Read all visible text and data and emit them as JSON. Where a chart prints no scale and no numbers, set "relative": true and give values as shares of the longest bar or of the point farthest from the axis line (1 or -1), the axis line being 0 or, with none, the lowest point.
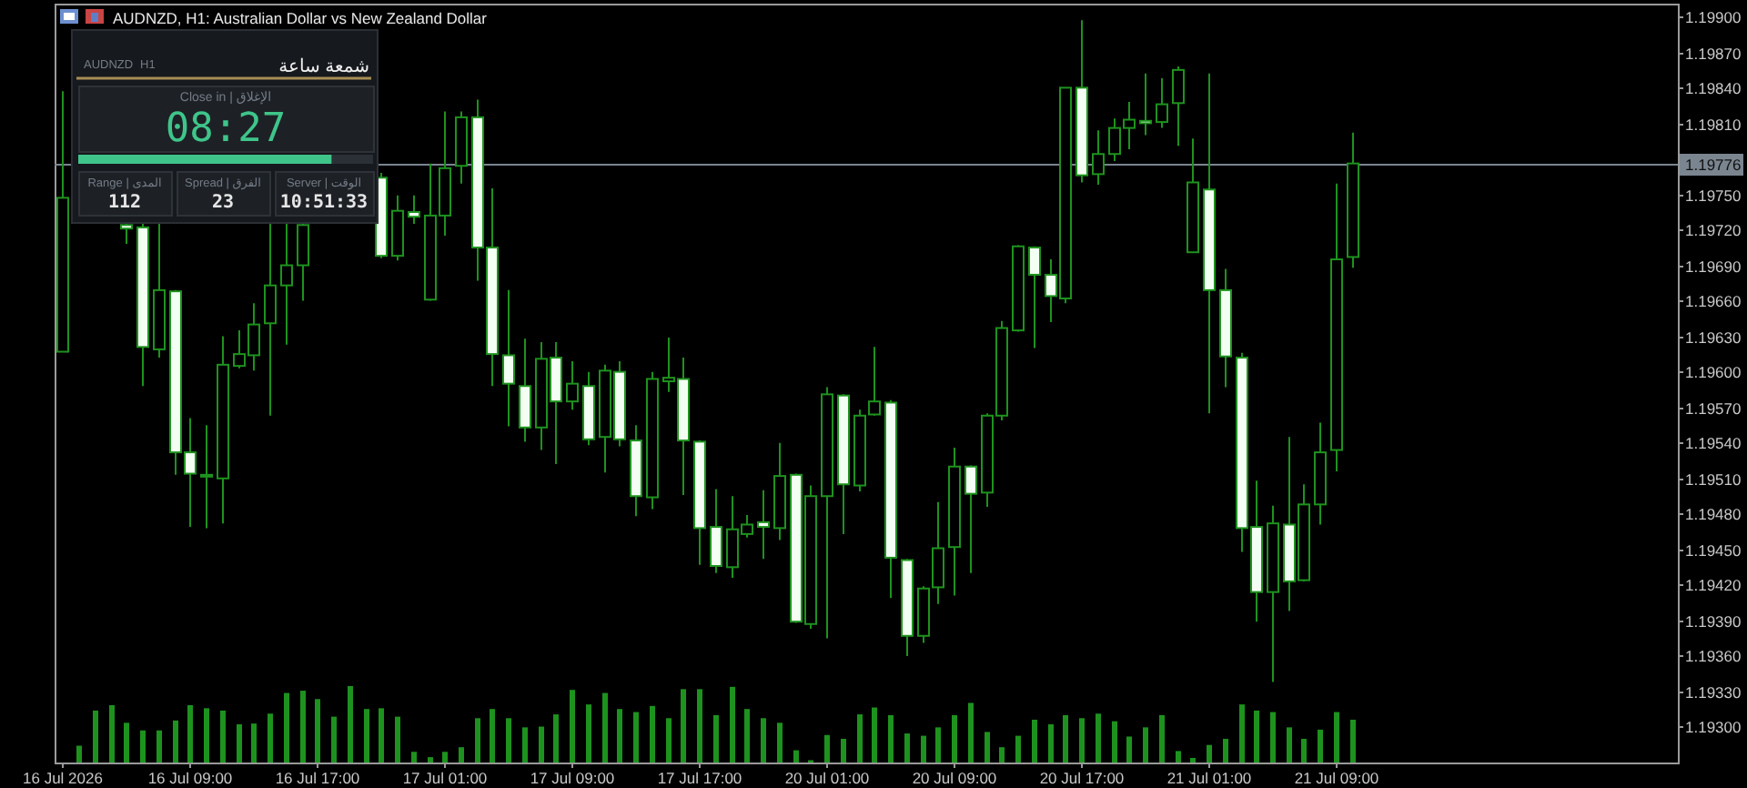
{
  "chart_data": [
    {
      "type": "candlestick",
      "title": "AUDNZD, H1: Australian Dollar vs New Zealand Dollar",
      "color": "#1e921e",
      "categories": [
        "16 Jul 2026",
        null,
        null,
        null,
        null,
        null,
        null,
        null,
        "16 Jul 09:00",
        null,
        null,
        null,
        null,
        null,
        null,
        null,
        "16 Jul 17:00",
        null,
        null,
        null,
        null,
        null,
        null,
        null,
        "17 Jul 01:00",
        null,
        null,
        null,
        null,
        null,
        null,
        null,
        "17 Jul 09:00",
        null,
        null,
        null,
        null,
        null,
        null,
        null,
        "17 Jul 17:00",
        null,
        null,
        null,
        null,
        null,
        null,
        null,
        "20 Jul 01:00",
        null,
        null,
        null,
        null,
        null,
        null,
        null,
        "20 Jul 09:00",
        null,
        null,
        null,
        null,
        null,
        null,
        null,
        "20 Jul 17:00",
        null,
        null,
        null,
        null,
        null,
        null,
        null,
        "21 Jul 01:00",
        null,
        null,
        null,
        null,
        null,
        null,
        null,
        "21 Jul 09:00",
        null,
        null,
        null,
        null,
        null,
        null,
        null,
        null,
        null,
        null,
        null,
        null,
        null,
        null,
        null,
        null,
        null,
        null,
        null,
        null,
        null
      ],
      "ohlc": [
        [
          1.19617,
          1.19837,
          1.19617,
          1.19747
        ],
        null,
        null,
        null,
        [
          1.19724,
          1.19726,
          1.19708,
          1.19721
        ],
        [
          1.19722,
          1.19726,
          1.19588,
          1.19621
        ],
        [
          1.19619,
          1.19726,
          1.19612,
          1.19669
        ],
        [
          1.19668,
          1.19669,
          1.19513,
          1.19532
        ],
        [
          1.19532,
          1.19561,
          1.19469,
          1.19514
        ],
        [
          1.19512,
          1.19555,
          1.19468,
          1.19513
        ],
        [
          1.1951,
          1.1963,
          1.19472,
          1.19606
        ],
        [
          1.19605,
          1.19635,
          1.19603,
          1.19615
        ],
        [
          1.19614,
          1.19658,
          1.19601,
          1.1964
        ],
        [
          1.19641,
          1.19726,
          1.19563,
          1.19673
        ],
        [
          1.19673,
          1.19726,
          1.19623,
          1.1969
        ],
        [
          1.1969,
          1.19726,
          1.1966,
          1.19724
        ],
        null,
        null,
        null,
        null,
        [
          1.19764,
          1.19768,
          1.19696,
          1.19698
        ],
        [
          1.19698,
          1.19749,
          1.19694,
          1.19736
        ],
        [
          1.19735,
          1.19749,
          1.19725,
          1.19731
        ],
        [
          1.19661,
          1.19776,
          1.1966,
          1.19732
        ],
        [
          1.19732,
          1.1982,
          1.19715,
          1.19772
        ],
        [
          1.19774,
          1.1982,
          1.19759,
          1.19815
        ],
        [
          1.19815,
          1.1983,
          1.19677,
          1.19705
        ],
        [
          1.19705,
          1.19755,
          1.19588,
          1.19615
        ],
        [
          1.19614,
          1.19669,
          1.19554,
          1.1959
        ],
        [
          1.19588,
          1.19628,
          1.19541,
          1.19553
        ],
        [
          1.19553,
          1.19625,
          1.19534,
          1.19611
        ],
        [
          1.19612,
          1.19625,
          1.19522,
          1.19575
        ],
        [
          1.19575,
          1.19609,
          1.19568,
          1.1959
        ],
        [
          1.19588,
          1.196,
          1.19538,
          1.19543
        ],
        [
          1.19545,
          1.19606,
          1.19515,
          1.19601
        ],
        [
          1.196,
          1.19609,
          1.19537,
          1.19543
        ],
        [
          1.19542,
          1.19555,
          1.19478,
          1.19495
        ],
        [
          1.19494,
          1.196,
          1.19484,
          1.19594
        ],
        [
          1.19592,
          1.19629,
          1.19583,
          1.19595
        ],
        [
          1.19594,
          1.19612,
          1.19496,
          1.19542
        ],
        [
          1.19541,
          1.19542,
          1.19437,
          1.19468
        ],
        [
          1.19469,
          1.19501,
          1.1943,
          1.19436
        ],
        [
          1.19435,
          1.19495,
          1.19426,
          1.19467
        ],
        [
          1.19463,
          1.19479,
          1.1946,
          1.19471
        ],
        [
          1.19473,
          1.195,
          1.19442,
          1.19469
        ],
        [
          1.19468,
          1.1954,
          1.19458,
          1.19512
        ],
        [
          1.19513,
          1.19514,
          1.19388,
          1.19389
        ],
        [
          1.19387,
          1.19504,
          1.19383,
          1.19495
        ],
        [
          1.19495,
          1.19587,
          1.19375,
          1.19581
        ],
        [
          1.1958,
          1.19581,
          1.19463,
          1.19505
        ],
        [
          1.19504,
          1.19568,
          1.19499,
          1.19563
        ],
        [
          1.19564,
          1.19621,
          1.19563,
          1.19575
        ],
        [
          1.19574,
          1.19576,
          1.19409,
          1.19443
        ],
        [
          1.19441,
          1.19442,
          1.1936,
          1.19377
        ],
        [
          1.19377,
          1.19419,
          1.19371,
          1.19417
        ],
        [
          1.19418,
          1.1949,
          1.19404,
          1.19451
        ],
        [
          1.19452,
          1.19536,
          1.19411,
          1.1952
        ],
        [
          1.1952,
          1.19521,
          1.1943,
          1.19497
        ],
        [
          1.19498,
          1.19565,
          1.19486,
          1.19563
        ],
        [
          1.19563,
          1.19643,
          1.19559,
          1.19637
        ],
        [
          1.19635,
          1.19707,
          1.19634,
          1.19706
        ],
        [
          1.19705,
          1.19706,
          1.1962,
          1.19682
        ],
        [
          1.19682,
          1.19695,
          1.19642,
          1.19664
        ],
        [
          1.19662,
          1.1984,
          1.19658,
          1.1984
        ],
        [
          1.1984,
          1.19897,
          1.1976,
          1.19766
        ],
        [
          1.19767,
          1.19804,
          1.19758,
          1.19784
        ],
        [
          1.19784,
          1.19814,
          1.19778,
          1.19806
        ],
        [
          1.19806,
          1.19828,
          1.19788,
          1.19813
        ],
        [
          1.19812,
          1.19852,
          1.198,
          1.1981
        ],
        [
          1.19811,
          1.19848,
          1.19806,
          1.19826
        ],
        [
          1.19827,
          1.19858,
          1.19791,
          1.19855
        ],
        [
          1.19701,
          1.19797,
          1.19701,
          1.1976
        ],
        [
          1.19754,
          1.19852,
          1.19565,
          1.19669
        ],
        [
          1.19669,
          1.19687,
          1.19587,
          1.19613
        ],
        [
          1.19612,
          1.19616,
          1.19448,
          1.19468
        ],
        [
          1.19469,
          1.19508,
          1.19389,
          1.19414
        ],
        [
          1.19414,
          1.19487,
          1.19338,
          1.19472
        ],
        [
          1.19471,
          1.19545,
          1.19398,
          1.19423
        ],
        [
          1.19424,
          1.19505,
          1.19423,
          1.19488
        ],
        [
          1.19488,
          1.19557,
          1.19471,
          1.19532
        ],
        [
          1.19534,
          1.19759,
          1.19516,
          1.19695
        ],
        [
          1.19697,
          1.19802,
          1.19688,
          1.19776
        ],
        null,
        null,
        null,
        null,
        null,
        null,
        null,
        null,
        null,
        null,
        null,
        null,
        null,
        null,
        null,
        null,
        null,
        null,
        null,
        null
      ],
      "ylim": [
        1.1927,
        1.19911
      ],
      "yticks": [
        {
          "value": 1.193,
          "label": "1.19300"
        },
        {
          "value": 1.1933,
          "label": "1.19330"
        },
        {
          "value": 1.1936,
          "label": "1.19360"
        },
        {
          "value": 1.1939,
          "label": "1.19390"
        },
        {
          "value": 1.1942,
          "label": "1.19420"
        },
        {
          "value": 1.1945,
          "label": "1.19450"
        },
        {
          "value": 1.1948,
          "label": "1.19480"
        },
        {
          "value": 1.1951,
          "label": "1.19510"
        },
        {
          "value": 1.1954,
          "label": "1.19540"
        },
        {
          "value": 1.1957,
          "label": "1.19570"
        },
        {
          "value": 1.196,
          "label": "1.19600"
        },
        {
          "value": 1.1963,
          "label": "1.19630"
        },
        {
          "value": 1.1966,
          "label": "1.19660"
        },
        {
          "value": 1.1969,
          "label": "1.19690"
        },
        {
          "value": 1.1972,
          "label": "1.19720"
        },
        {
          "value": 1.1975,
          "label": "1.19750"
        },
        {
          "value": 1.1981,
          "label": "1.19810"
        },
        {
          "value": 1.1984,
          "label": "1.19840"
        },
        {
          "value": 1.1987,
          "label": "1.19870"
        },
        {
          "value": 1.199,
          "label": "1.19900"
        }
      ],
      "ref_lines": [
        {
          "axis": "y",
          "value": 1.19776,
          "label": "1.19776",
          "color": "#7a8590"
        }
      ]
    },
    {
      "type": "bar",
      "relative": true,
      "color": "#1e921e",
      "categories": [
        null,
        null,
        null,
        null,
        null,
        null,
        null,
        null,
        null,
        null,
        null,
        null,
        null,
        null,
        null,
        null,
        null,
        null,
        null,
        null,
        null,
        null,
        null,
        null,
        null,
        null,
        null,
        null,
        null,
        null,
        null,
        null,
        null,
        null,
        null,
        null,
        null,
        null,
        null,
        null,
        null,
        null,
        null,
        null,
        null,
        null,
        null,
        null,
        null,
        null,
        null,
        null,
        null,
        null,
        null,
        null,
        null,
        null,
        null,
        null,
        null,
        null,
        null,
        null,
        null,
        null,
        null,
        null,
        null,
        null,
        null,
        null,
        null,
        null,
        null,
        null,
        null,
        null,
        null,
        null,
        null,
        null,
        null,
        null,
        null,
        null,
        null,
        null,
        null,
        null,
        null,
        null,
        null,
        null,
        null,
        null,
        null,
        null,
        null,
        null,
        null,
        null
      ],
      "values": [
        null,
        0.22,
        0.68,
        0.75,
        0.52,
        0.42,
        0.42,
        0.55,
        0.75,
        0.71,
        0.68,
        0.5,
        0.51,
        0.64,
        0.91,
        0.94,
        0.83,
        0.6,
        1,
        0.7,
        0.71,
        0.6,
        0.14,
        0.07,
        0.14,
        0.2,
        0.58,
        0.7,
        0.58,
        0.46,
        0.47,
        0.63,
        0.95,
        0.76,
        0.91,
        0.7,
        0.66,
        0.74,
        0.58,
        0.96,
        0.96,
        0.62,
        0.99,
        0.7,
        0.58,
        0.52,
        0.16,
        0.03,
        0.36,
        0.31,
        0.63,
        0.72,
        0.62,
        0.38,
        0.35,
        0.46,
        0.62,
        0.78,
        0.4,
        0.2,
        0.35,
        0.56,
        0.5,
        0.62,
        0.58,
        0.64,
        0.54,
        0.34,
        0.46,
        0.62,
        0.15,
        0.06,
        0.23,
        0.31,
        0.76,
        0.68,
        0.66,
        0.46,
        0.31,
        0.43,
        0.66,
        0.56,
        null,
        null,
        null,
        null,
        null,
        null,
        null,
        null,
        null,
        null,
        null,
        null,
        null,
        null,
        null,
        null,
        null,
        null,
        null,
        null
      ]
    },
    {
      "type": "other",
      "annotations": [
        "AUDNZD",
        "H1",
        "شمعة ساعة",
        "Close in | الإغلاق",
        "08:27",
        "Range | المدى",
        "112",
        "Spread | الفرق",
        "23",
        "Server | الوقت",
        "10:51:33"
      ]
    },
    {
      "type": "bar",
      "orientation": "horizontal",
      "stacked": true,
      "relative": true,
      "categories": [
        null
      ],
      "series": [
        {
          "color": "#3fc58a",
          "values": [
            0.86
          ]
        },
        {
          "color": "#2b3036",
          "values": [
            0.14
          ]
        }
      ]
    }
  ]
}
